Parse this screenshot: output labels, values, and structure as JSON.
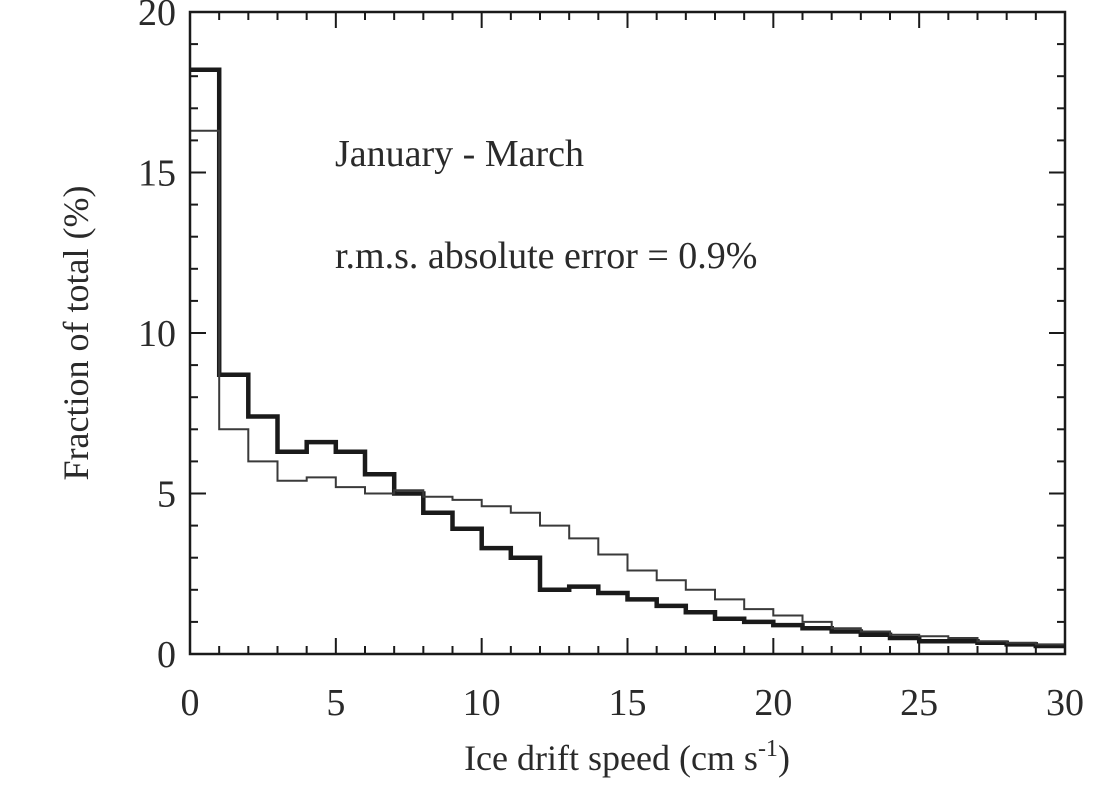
{
  "chart_data": {
    "type": "histogram-step",
    "xlabel": "Ice drift speed (cm s",
    "xlabel_sup": "-1",
    "xlabel_end": ")",
    "ylabel": "Fraction of total (%)",
    "annotations": [
      "January - March",
      "r.m.s. absolute error = 0.9%"
    ],
    "xlim": [
      0,
      30
    ],
    "ylim": [
      0,
      20
    ],
    "xticks": [
      0,
      5,
      10,
      15,
      20,
      25,
      30
    ],
    "yticks": [
      0,
      5,
      10,
      15,
      20
    ],
    "bin_width": 1,
    "series": [
      {
        "style": "thick",
        "color": "#1a1a1a",
        "values": [
          18.2,
          8.7,
          7.4,
          6.3,
          6.6,
          6.3,
          5.6,
          5.0,
          4.4,
          3.9,
          3.3,
          3.0,
          2.0,
          2.1,
          1.9,
          1.7,
          1.5,
          1.3,
          1.1,
          1.0,
          0.9,
          0.8,
          0.7,
          0.6,
          0.5,
          0.4,
          0.4,
          0.35,
          0.3,
          0.25
        ]
      },
      {
        "style": "thin",
        "color": "#3a3a3a",
        "values": [
          16.3,
          7.0,
          6.0,
          5.4,
          5.5,
          5.2,
          5.0,
          5.1,
          4.9,
          4.8,
          4.6,
          4.4,
          4.0,
          3.6,
          3.1,
          2.6,
          2.3,
          2.0,
          1.7,
          1.4,
          1.2,
          1.0,
          0.8,
          0.7,
          0.6,
          0.55,
          0.5,
          0.4,
          0.35,
          0.3
        ]
      }
    ]
  }
}
